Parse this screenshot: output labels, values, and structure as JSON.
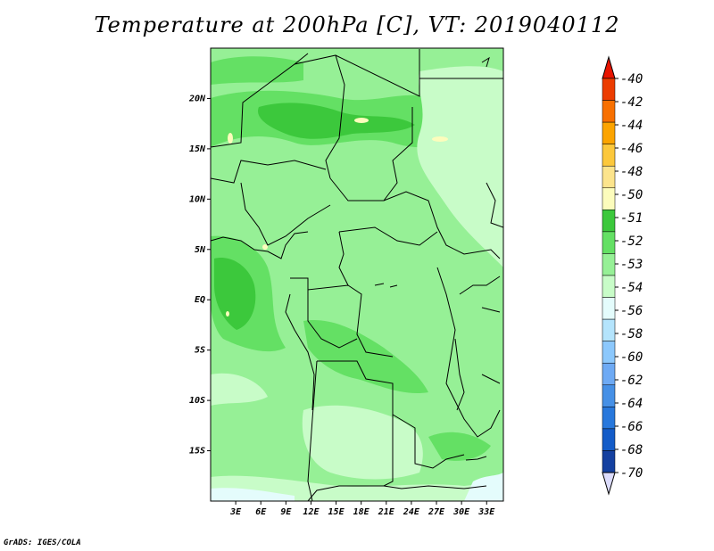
{
  "title": "Temperature at 200hPa [C], VT: 2019040112",
  "footer": "GrADS: IGES/COLA",
  "map": {
    "lon_range": [
      0,
      35
    ],
    "lat_range": [
      -20,
      25
    ],
    "lat_ticks": [
      {
        "value": 20,
        "label": "20N"
      },
      {
        "value": 15,
        "label": "15N"
      },
      {
        "value": 10,
        "label": "10N"
      },
      {
        "value": 5,
        "label": "5N"
      },
      {
        "value": 0,
        "label": "EQ"
      },
      {
        "value": -5,
        "label": "5S"
      },
      {
        "value": -10,
        "label": "10S"
      },
      {
        "value": -15,
        "label": "15S"
      }
    ],
    "lon_ticks": [
      {
        "value": 3,
        "label": "3E"
      },
      {
        "value": 6,
        "label": "6E"
      },
      {
        "value": 9,
        "label": "9E"
      },
      {
        "value": 12,
        "label": "12E"
      },
      {
        "value": 15,
        "label": "15E"
      },
      {
        "value": 18,
        "label": "18E"
      },
      {
        "value": 21,
        "label": "21E"
      },
      {
        "value": 24,
        "label": "24E"
      },
      {
        "value": 27,
        "label": "27E"
      },
      {
        "value": 30,
        "label": "30E"
      },
      {
        "value": 33,
        "label": "33E"
      }
    ]
  },
  "colorbar": {
    "colors": [
      "#dc0000",
      "#ec3c00",
      "#f87000",
      "#fca400",
      "#fcc83c",
      "#fce48c",
      "#fcfcbc",
      "#3cc83c",
      "#64e064",
      "#96f096",
      "#c8fcc8",
      "#e4fcfc",
      "#b4e4fc",
      "#8cc8fc",
      "#6eaaf4",
      "#4690e6",
      "#2878dc",
      "#145cc8",
      "#1440a0",
      "#0c2878"
    ],
    "top_color": "#e81400",
    "bottom_color": "#dcdcfc",
    "labels": [
      "-40",
      "-42",
      "-44",
      "-46",
      "-48",
      "-50",
      "-51",
      "-52",
      "-53",
      "-54",
      "-56",
      "-58",
      "-60",
      "-62",
      "-64",
      "-66",
      "-68",
      "-70"
    ]
  },
  "colors": {
    "light_green": "#c8fcc8",
    "mid_green": "#96f096",
    "green": "#64e064",
    "dark_green": "#3cc83c",
    "yellow": "#fcfcbc",
    "pale_cyan": "#e4fcfc"
  }
}
